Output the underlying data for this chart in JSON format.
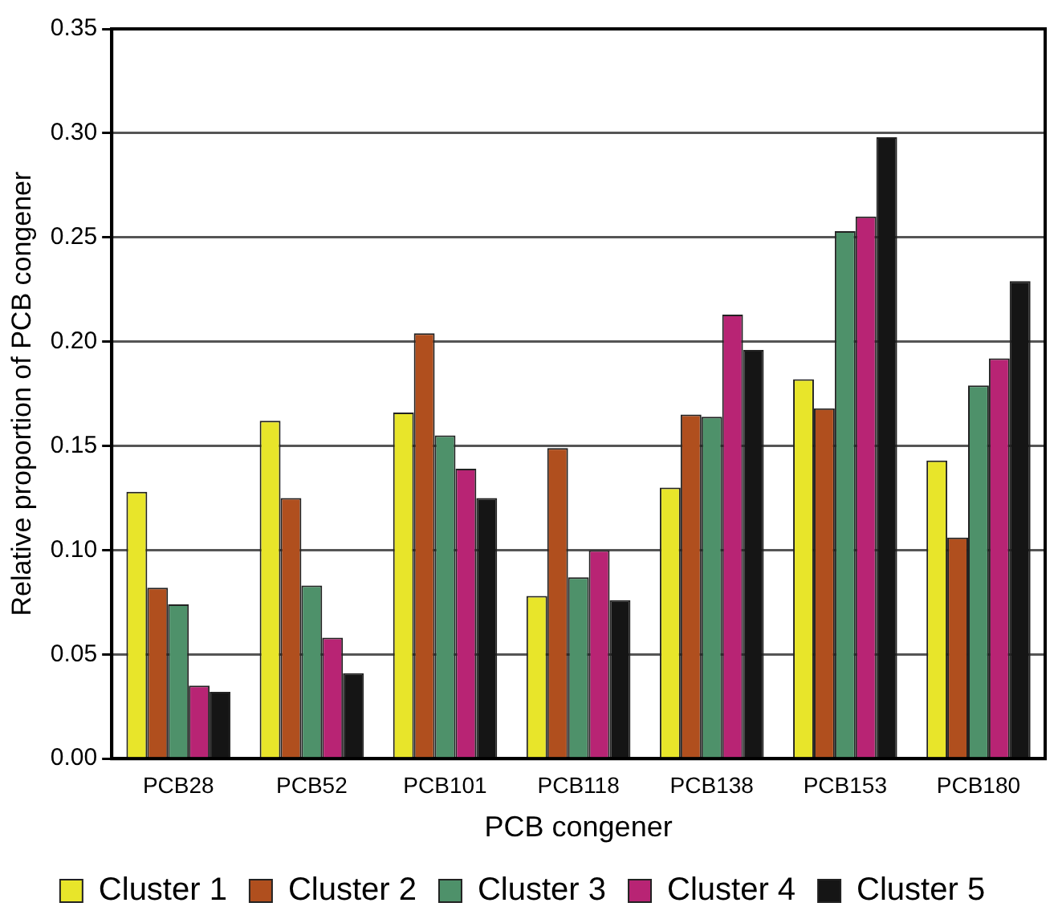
{
  "chart_data": {
    "type": "bar",
    "xlabel": "PCB congener",
    "ylabel": "Relative proportion of PCB congener",
    "categories": [
      "PCB28",
      "PCB52",
      "PCB101",
      "PCB118",
      "PCB138",
      "PCB153",
      "PCB180"
    ],
    "series": [
      {
        "name": "Cluster 1",
        "color": "#e8e52a",
        "values": [
          0.128,
          0.162,
          0.166,
          0.078,
          0.13,
          0.182,
          0.143
        ]
      },
      {
        "name": "Cluster 2",
        "color": "#b04f1e",
        "values": [
          0.082,
          0.125,
          0.204,
          0.149,
          0.165,
          0.168,
          0.106
        ]
      },
      {
        "name": "Cluster 3",
        "color": "#4e916a",
        "values": [
          0.074,
          0.083,
          0.155,
          0.087,
          0.164,
          0.253,
          0.179
        ]
      },
      {
        "name": "Cluster 4",
        "color": "#b82474",
        "values": [
          0.035,
          0.058,
          0.139,
          0.1,
          0.213,
          0.26,
          0.192
        ]
      },
      {
        "name": "Cluster 5",
        "color": "#151515",
        "values": [
          0.032,
          0.041,
          0.125,
          0.076,
          0.196,
          0.298,
          0.229
        ]
      }
    ],
    "ylim": [
      0,
      0.35
    ],
    "yticks": [
      {
        "value": 0,
        "label": "0.00"
      },
      {
        "value": 0.05,
        "label": "0.05"
      },
      {
        "value": 0.1,
        "label": "0.10"
      },
      {
        "value": 0.15,
        "label": "0.15"
      },
      {
        "value": 0.2,
        "label": "0.20"
      },
      {
        "value": 0.25,
        "label": "0.25"
      },
      {
        "value": 0.3,
        "label": "0.30"
      },
      {
        "value": 0.35,
        "label": "0.35"
      }
    ],
    "grid": "y",
    "legend": "bottom"
  }
}
